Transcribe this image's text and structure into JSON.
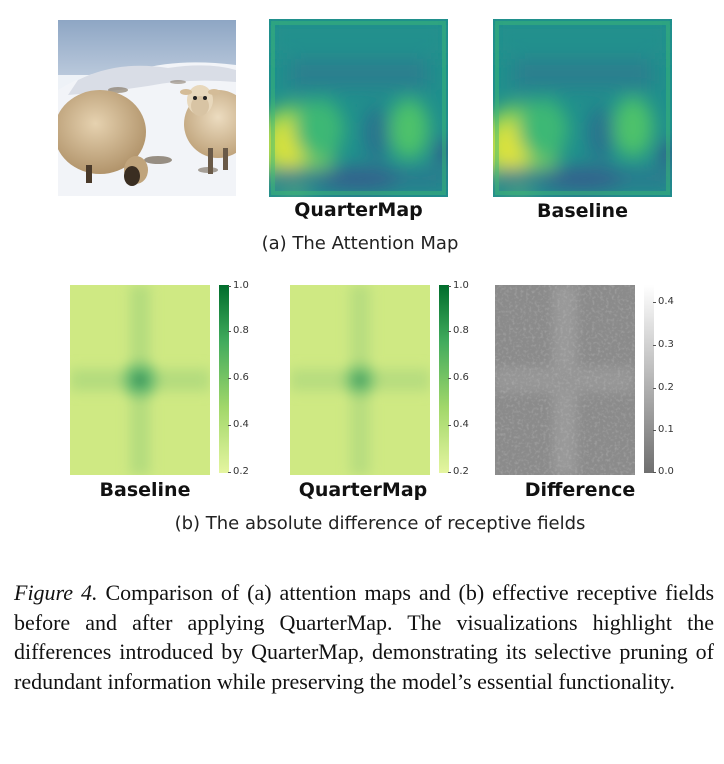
{
  "figure": {
    "part_a": {
      "labels": {
        "quartermap": "QuarterMap",
        "baseline": "Baseline"
      },
      "subcaption": "(a) The Attention Map"
    },
    "part_b": {
      "labels": {
        "baseline": "Baseline",
        "quartermap": "QuarterMap",
        "difference": "Difference"
      },
      "subcaption": "(b) The absolute difference of receptive fields",
      "colorbar_green": {
        "ticks": [
          "1.0",
          "0.8",
          "0.6",
          "0.4",
          "0.2"
        ],
        "min": 0.2,
        "max": 1.0
      },
      "colorbar_gray": {
        "ticks": [
          "0.4",
          "0.3",
          "0.2",
          "0.1",
          "0.0"
        ],
        "min": 0.0,
        "max": 0.45
      }
    }
  },
  "caption": {
    "figure_label": "Figure 4.",
    "text": "Comparison of (a) attention maps and (b) effective receptive fields before and after applying QuarterMap. The visualizations highlight the differences introduced by QuarterMap, demonstrating its selective pruning of redundant information while preserving the model’s essential functionality."
  }
}
